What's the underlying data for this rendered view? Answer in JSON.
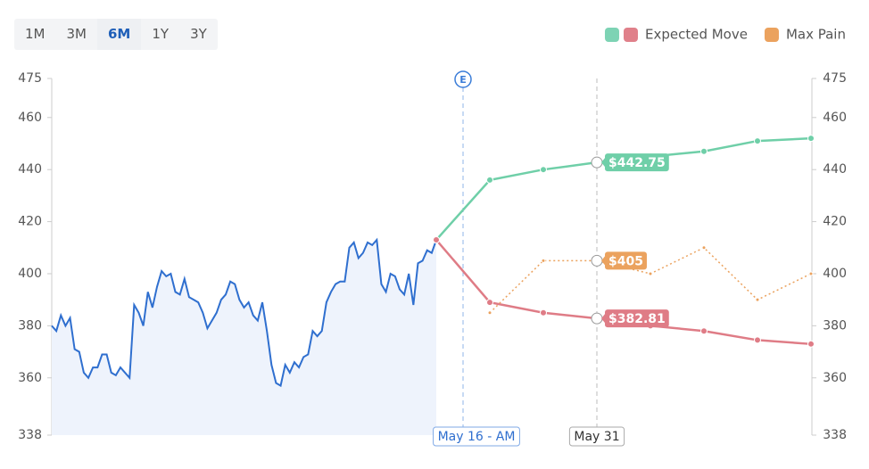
{
  "controls": {
    "ranges": [
      {
        "label": "1M"
      },
      {
        "label": "3M"
      },
      {
        "label": "6M",
        "selected": true
      },
      {
        "label": "1Y"
      },
      {
        "label": "3Y"
      }
    ]
  },
  "chart_data": {
    "type": "line",
    "legend": [
      {
        "name": "Expected Move",
        "colors": [
          "#7dd3b4",
          "#e0808a"
        ]
      },
      {
        "name": "Max Pain",
        "colors": [
          "#eba25e"
        ]
      }
    ],
    "ylim": [
      338,
      475
    ],
    "yticks": [
      338,
      360,
      380,
      400,
      420,
      440,
      460,
      475
    ],
    "history": {
      "color": "#2f6fcf",
      "fill": "#eef3fc",
      "values": [
        380,
        378,
        384,
        380,
        383,
        371,
        370,
        362,
        360,
        364,
        364,
        369,
        369,
        362,
        361,
        364,
        362,
        360,
        388,
        385,
        380,
        393,
        387,
        395,
        401,
        399,
        400,
        393,
        392,
        398,
        391,
        390,
        389,
        385,
        379,
        382,
        385,
        390,
        392,
        397,
        396,
        390,
        387,
        389,
        384,
        382,
        389,
        378,
        365,
        358,
        357,
        365,
        362,
        366,
        364,
        368,
        369,
        378,
        376,
        378,
        389,
        393,
        396,
        397,
        397,
        410,
        412,
        406,
        408,
        412,
        411,
        413,
        396,
        393,
        400,
        399,
        394,
        392,
        400,
        388,
        404,
        405,
        409,
        408,
        413
      ]
    },
    "event": {
      "marker": "E",
      "label": "May 16 - AM"
    },
    "categories": [
      null,
      null,
      null,
      "May 31",
      null,
      null,
      null,
      null
    ],
    "highlight": 3,
    "series": [
      {
        "color": "#6fcfa8",
        "values": [
          413,
          436,
          440,
          442.75,
          445,
          447,
          451,
          452
        ],
        "value_labels": [
          null,
          null,
          null,
          "$442.75",
          null,
          null,
          null,
          null
        ]
      },
      {
        "color": "#df7c86",
        "values": [
          413,
          389,
          385,
          382.81,
          380,
          378,
          374.5,
          373
        ],
        "value_labels": [
          null,
          null,
          null,
          "$382.81",
          null,
          null,
          null,
          null
        ]
      },
      {
        "color": "#eba25e",
        "dashed": true,
        "values": [
          null,
          385,
          405,
          405,
          400,
          410,
          390,
          400
        ],
        "value_labels": [
          null,
          null,
          null,
          "$405",
          null,
          null,
          null,
          null
        ]
      }
    ]
  }
}
